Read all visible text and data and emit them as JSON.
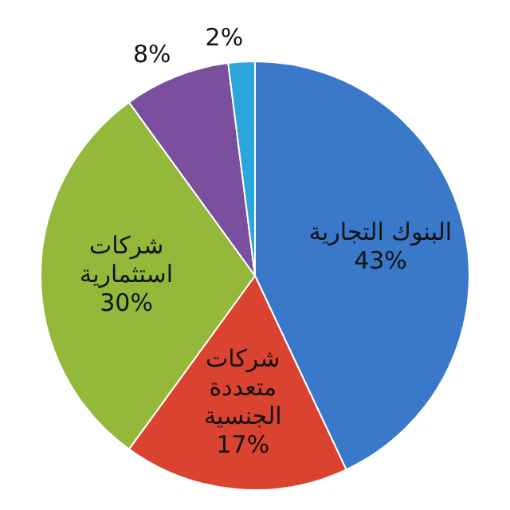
{
  "chart_data": {
    "type": "pie",
    "categories": [
      "البنوك التجارية",
      "شركات متعددة الجنسية",
      "شركات استثمارية",
      null,
      null
    ],
    "values": [
      43,
      17,
      30,
      8,
      2
    ],
    "value_labels": [
      "43%",
      "17%",
      "30%",
      "8%",
      "2%"
    ],
    "colors": [
      "#3a78c9",
      "#d9432f",
      "#93b83a",
      "#7a4f9e",
      "#2aa6dc"
    ],
    "legend": false
  }
}
